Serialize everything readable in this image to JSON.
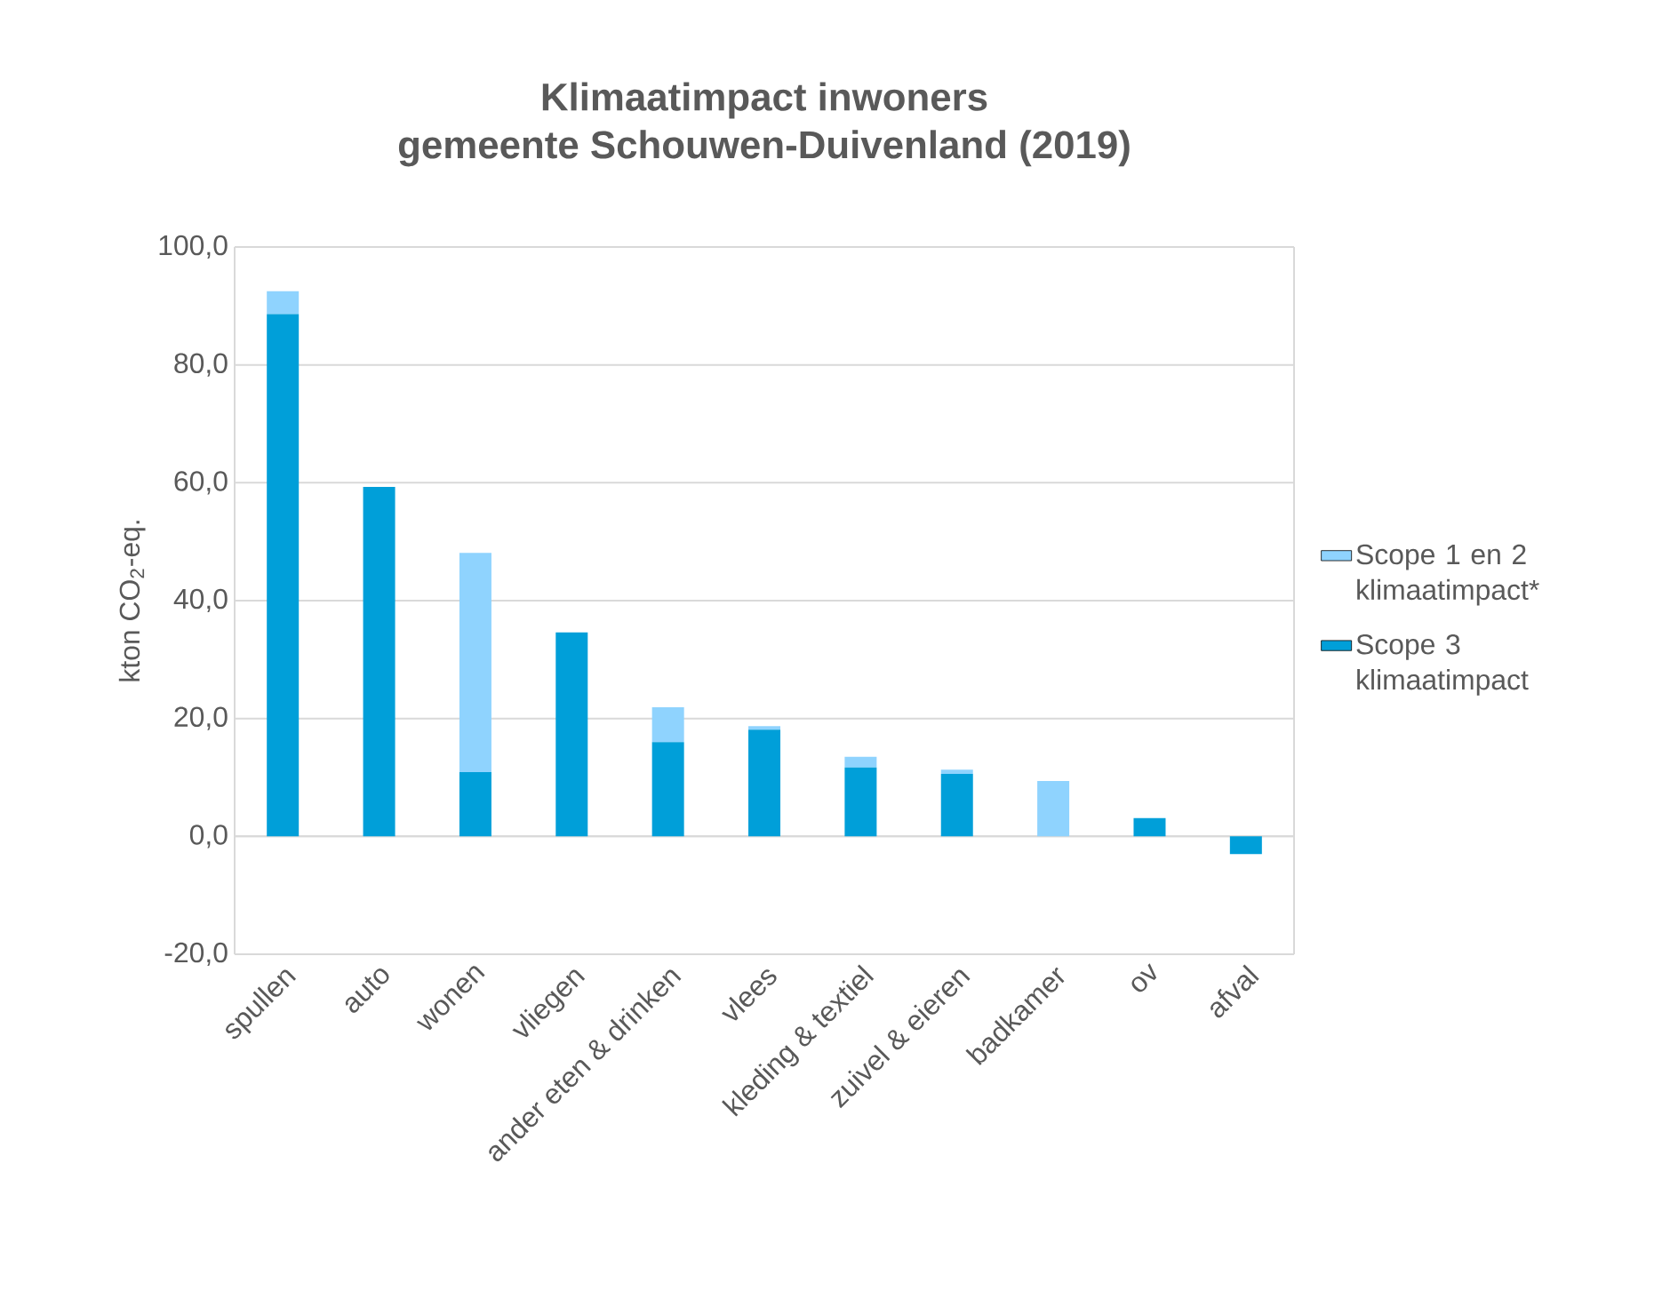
{
  "chart_data": {
    "type": "bar",
    "title": "Klimaatimpact inwoners\ngemeente Schouwen-Duivenland (2019)",
    "ylabel": "kton CO$_{2}$-eq.",
    "categories": [
      "spullen",
      "auto",
      "wonen",
      "vliegen",
      "ander eten & drinken",
      "vlees",
      "kleding & textiel",
      "zuivel & eieren",
      "badkamer",
      "ov",
      "afval"
    ],
    "stacked": true,
    "series": [
      {
        "name": "Scope 3 klimaatimpact",
        "color": "#009fd9",
        "values": [
          88.6,
          59.3,
          10.9,
          34.6,
          16.0,
          18.1,
          11.7,
          10.6,
          0,
          3.1,
          -3.0
        ]
      },
      {
        "name": "Scope 1 en 2 klimaatimpact*",
        "color": "#8fd3fe",
        "values": [
          3.9,
          0,
          37.2,
          0,
          5.9,
          0.6,
          1.8,
          0.7,
          9.4,
          0,
          0
        ]
      }
    ],
    "ylim": [
      -20,
      100
    ],
    "yticks": [
      {
        "value": -20,
        "label": "-20,0"
      },
      {
        "value": 0,
        "label": "0,0"
      },
      {
        "value": 20,
        "label": "20,0"
      },
      {
        "value": 40,
        "label": "40,0"
      },
      {
        "value": 60,
        "label": "60,0"
      },
      {
        "value": 80,
        "label": "80,0"
      },
      {
        "value": 100,
        "label": "100,0"
      }
    ],
    "grid": "y",
    "legend": "right"
  }
}
